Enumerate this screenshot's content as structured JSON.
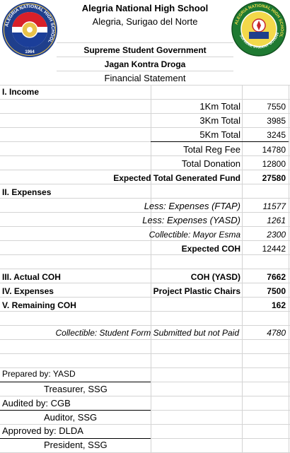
{
  "header": {
    "school_name": "Alegria National High School",
    "location": "Alegria, Surigao del Norte",
    "org": "Supreme Student Government",
    "program": "Jagan Kontra Droga",
    "doc_title": "Financial Statement",
    "left_logo": {
      "ring_text": "ALEGRIA NATIONAL HIGH SCHOOL",
      "year": "1964",
      "colors": {
        "ring": "#1f3f8c",
        "band_red": "#d8202a",
        "band_blue": "#1b3e99",
        "gold": "#e9c24a"
      }
    },
    "right_logo": {
      "ring_text": "ALEGRIA NATIONAL HIGH SCHOOL",
      "bottom_text": "SUPREME STUDENT GOVERNMENT",
      "colors": {
        "ring": "#1f7a32",
        "center": "#f3d84a",
        "accent": "#c6262d"
      }
    }
  },
  "income": {
    "heading": "I. Income",
    "items": [
      {
        "label": "1Km Total",
        "value": "7550"
      },
      {
        "label": "3Km Total",
        "value": "3985"
      },
      {
        "label": "5Km Total",
        "value": "3245"
      }
    ],
    "total_reg_fee": {
      "label": "Total Reg Fee",
      "value": "14780"
    },
    "total_donation": {
      "label": "Total Donation",
      "value": "12800"
    },
    "expected_total": {
      "label": "Expected Total Generated Fund",
      "value": "27580"
    }
  },
  "expenses": {
    "heading": "II. Expenses",
    "items": [
      {
        "label": "Less: Expenses (FTAP)",
        "value": "11577"
      },
      {
        "label": "Less: Expenses (YASD)",
        "value": "1261"
      }
    ],
    "collectible": {
      "prefix": "Collectible:",
      "name": " Mayor Esma",
      "value": "2300"
    },
    "expected_coh": {
      "label": "Expected COH",
      "value": "12442"
    }
  },
  "summary": {
    "actual_coh": {
      "heading": "III. Actual COH",
      "label": "COH (YASD)",
      "value": "7662"
    },
    "expenses": {
      "heading": "IV. Expenses",
      "label": "Project Plastic Chairs",
      "value": "7500"
    },
    "remaining": {
      "heading": "V. Remaining COH",
      "value": "162"
    }
  },
  "collectible_forms": {
    "label": "Collectible: Student Form Submitted but not Paid",
    "value": "4780"
  },
  "signatories": {
    "prepared_by": "Prepared by: YASD",
    "prepared_role": "Treasurer, SSG",
    "audited_by": "Audited by: CGB",
    "audited_role": "Auditor, SSG",
    "approved_by": "Approved by: DLDA",
    "approved_role": "President, SSG"
  }
}
